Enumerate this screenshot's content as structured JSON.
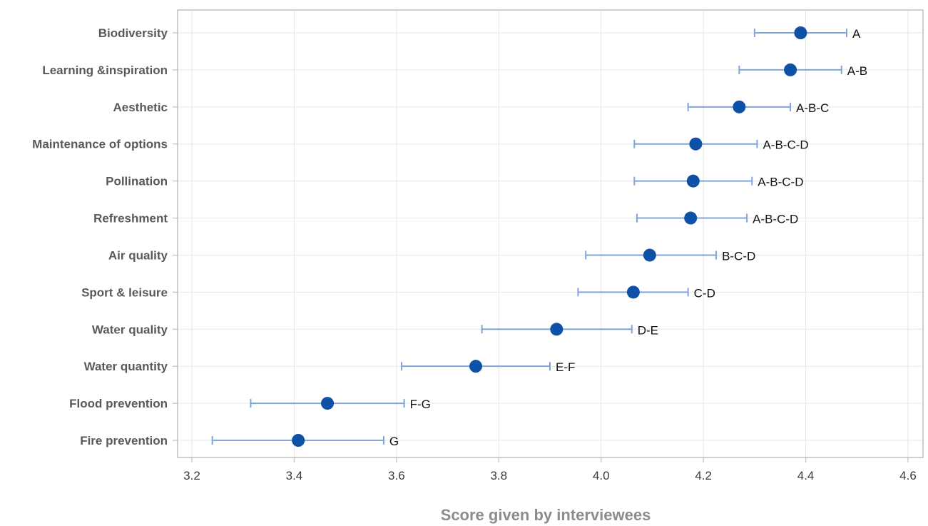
{
  "chart_data": {
    "type": "scatter",
    "xlabel": "Score given by interviewees",
    "xlim": [
      3.2,
      4.6
    ],
    "xticks": [
      "3.2",
      "3.4",
      "3.6",
      "3.8",
      "4.0",
      "4.2",
      "4.4",
      "4.6"
    ],
    "grid": true,
    "colors": {
      "point": "#0d52a6",
      "errorbar": "#7ea6d6",
      "grid": "#e6e6e6",
      "frame": "#bfbfbf"
    },
    "points": [
      {
        "category": "Biodiversity",
        "mean": 4.39,
        "lower": 4.3,
        "upper": 4.48,
        "group": "A"
      },
      {
        "category": "Learning &inspiration",
        "mean": 4.37,
        "lower": 4.27,
        "upper": 4.47,
        "group": "A-B"
      },
      {
        "category": "Aesthetic",
        "mean": 4.27,
        "lower": 4.17,
        "upper": 4.37,
        "group": "A-B-C"
      },
      {
        "category": "Maintenance of options",
        "mean": 4.185,
        "lower": 4.065,
        "upper": 4.305,
        "group": "A-B-C-D"
      },
      {
        "category": "Pollination",
        "mean": 4.18,
        "lower": 4.065,
        "upper": 4.295,
        "group": "A-B-C-D"
      },
      {
        "category": "Refreshment",
        "mean": 4.175,
        "lower": 4.07,
        "upper": 4.285,
        "group": "A-B-C-D"
      },
      {
        "category": "Air quality",
        "mean": 4.095,
        "lower": 3.97,
        "upper": 4.225,
        "group": "B-C-D"
      },
      {
        "category": "Sport & leisure",
        "mean": 4.063,
        "lower": 3.955,
        "upper": 4.17,
        "group": "C-D"
      },
      {
        "category": "Water quality",
        "mean": 3.913,
        "lower": 3.767,
        "upper": 4.06,
        "group": "D-E"
      },
      {
        "category": "Water quantity",
        "mean": 3.755,
        "lower": 3.61,
        "upper": 3.9,
        "group": "E-F"
      },
      {
        "category": "Flood prevention",
        "mean": 3.465,
        "lower": 3.315,
        "upper": 3.615,
        "group": "F-G"
      },
      {
        "category": "Fire prevention",
        "mean": 3.408,
        "lower": 3.24,
        "upper": 3.575,
        "group": "G"
      }
    ]
  }
}
